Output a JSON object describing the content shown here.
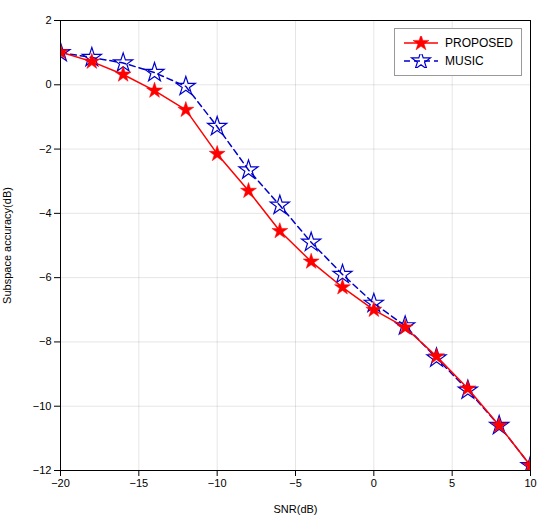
{
  "chart_data": {
    "type": "line",
    "x": [
      -20,
      -18,
      -16,
      -14,
      -12,
      -10,
      -8,
      -6,
      -4,
      -2,
      0,
      2,
      4,
      6,
      8,
      10
    ],
    "series": [
      {
        "name": "PROPOSED",
        "color": "#ff0000",
        "marker": "star",
        "line_style": "solid",
        "values": [
          1.02,
          0.72,
          0.32,
          -0.18,
          -0.78,
          -2.15,
          -3.3,
          -4.55,
          -5.5,
          -6.3,
          -7.0,
          -7.55,
          -8.45,
          -9.45,
          -10.6,
          -11.85
        ]
      },
      {
        "name": "MUSIC",
        "color": "#0000cc",
        "marker": "star-open",
        "line_style": "dashed",
        "values": [
          1.0,
          0.85,
          0.68,
          0.38,
          -0.05,
          -1.3,
          -2.65,
          -3.75,
          -4.9,
          -5.9,
          -6.8,
          -7.5,
          -8.5,
          -9.5,
          -10.6,
          -11.85
        ]
      }
    ],
    "xlabel": "SNR(dB)",
    "ylabel": "Subspace accuracy(dB)",
    "xlim": [
      -20,
      10
    ],
    "ylim": [
      -12,
      2
    ],
    "xticks": [
      -20,
      -15,
      -10,
      -5,
      0,
      5,
      10
    ],
    "yticks": [
      -12,
      -10,
      -8,
      -6,
      -4,
      -2,
      0,
      2
    ],
    "grid": true,
    "legend": "upper right"
  }
}
